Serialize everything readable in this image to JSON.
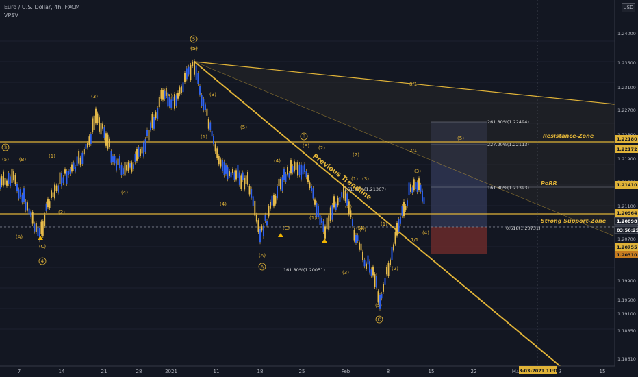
{
  "header": {
    "symbol": "Euro / U.S. Dollar, 4h, FXCM",
    "indicator": "VPSV",
    "currency": "USD"
  },
  "colors": {
    "bg": "#131722",
    "gold": "#e0b338",
    "bull": "#f0c24c",
    "bear": "#2962ff",
    "text": "#b2b5be",
    "axis": "#363a45",
    "support_zone": "#6a2a2a",
    "target_zone": "#333a58"
  },
  "y_axis": {
    "ticks": [
      "1.24000",
      "1.23500",
      "1.23100",
      "1.22700",
      "1.22300",
      "1.21900",
      "1.21500",
      "1.21100",
      "1.20700",
      "1.20300",
      "1.19900",
      "1.19500",
      "1.19100",
      "1.18850",
      "1.18610"
    ]
  },
  "x_axis": {
    "ticks": [
      "7",
      "14",
      "21",
      "28",
      "2021",
      "11",
      "18",
      "25",
      "Feb",
      "8",
      "15",
      "22",
      "Ma",
      "8",
      "15"
    ]
  },
  "price_badges": [
    {
      "label": "1.22180",
      "color": "#e0b338"
    },
    {
      "label": "1.22172",
      "color": "#e0b338"
    },
    {
      "label": "1.21410",
      "color": "#e0b338"
    },
    {
      "label": "1.20964",
      "color": "#e0b338"
    },
    {
      "label": "1.20898",
      "color": "#ffffff"
    },
    {
      "label": "03:56:25",
      "color": "#ffffff"
    },
    {
      "label": "1.20755",
      "color": "#e0b338"
    },
    {
      "label": "1.20310",
      "color": "#c77d20"
    }
  ],
  "time_badge": "03-03-2021   11:00",
  "levels": {
    "resistance": "Resistance-Zone",
    "porr": "PoRR",
    "support": "Strong Support-Zone",
    "trendline": "Previous Trendline"
  },
  "fib_labels": [
    "261.80%(1.22494)",
    "227.20%(1.22113)",
    "161.80%(1.21393)",
    "161.80%(1.21367)",
    "0.618(1.20731)",
    "161.80%(1.20051)"
  ],
  "fan_labels": [
    "8/1",
    "2/1",
    "1/1"
  ],
  "wave_labels": [
    "(5)",
    "(B)",
    "(1)",
    "(3)",
    "(4)",
    "(A)",
    "(C)",
    "(2)",
    "(5)",
    "(3)",
    "(1)",
    "(4)",
    "(5)",
    "(3)",
    "(1)",
    "(2)",
    "(4)",
    "(C)",
    "(A)",
    "(B)",
    "(2)",
    "(1)",
    "(4)",
    "(3)",
    "(5)",
    "(5)",
    "(3)",
    "(1)",
    "(2)",
    "(4)",
    "(3)",
    "(5)",
    "(2)",
    "(4)",
    "(5)"
  ],
  "circle_labels": [
    "3",
    "4",
    "5",
    "A",
    "B",
    "C"
  ],
  "chart_data": {
    "type": "candlestick",
    "y_range": [
      1.1861,
      1.2414
    ],
    "levels": [
      1.2218,
      1.2141,
      1.20964,
      1.20898,
      1.20755
    ],
    "wave_points": [
      {
        "x": "Dec 7",
        "y": 1.215
      },
      {
        "x": "Dec 10",
        "y": 1.206
      },
      {
        "x": "Dec 17",
        "y": 1.227
      },
      {
        "x": "Dec 30",
        "y": 1.2325
      },
      {
        "x": "Jan 6",
        "y": 1.2349
      },
      {
        "x": "Jan 18",
        "y": 1.2055
      },
      {
        "x": "Jan 26",
        "y": 1.2185
      },
      {
        "x": "Feb 4",
        "y": 1.2012
      },
      {
        "x": "Feb 5",
        "y": 1.1954
      },
      {
        "x": "Feb 12",
        "y": 1.2144
      },
      {
        "x": "Feb 15",
        "y": 1.2085
      }
    ]
  }
}
